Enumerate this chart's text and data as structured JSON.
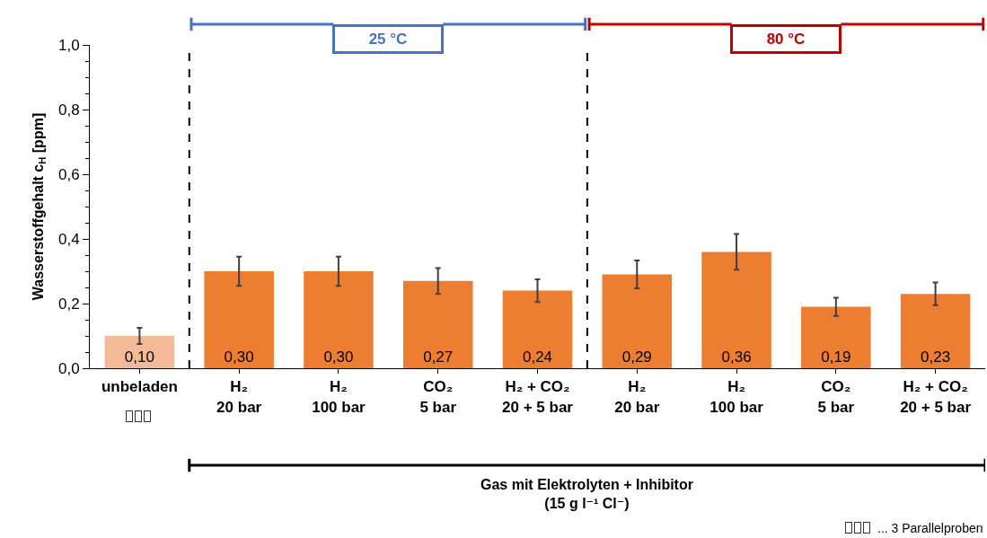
{
  "chart_data": {
    "type": "bar",
    "ylabel": "Wasserstoffgehalt c$_{H}$ [ppm]",
    "xlabel": "Gas mit Elektrolyten + Inhibitor\n(15 g l⁻¹ Cl⁻)",
    "categories": [
      "unbeladen",
      "H₂\n20 bar",
      "H₂\n100 bar",
      "CO₂\n5 bar",
      "H₂ + CO₂\n20 + 5 bar",
      "H₂\n20 bar",
      "H₂\n100 bar",
      "CO₂\n5 bar",
      "H₂ + CO₂\n20 + 5 bar"
    ],
    "values": [
      0.1,
      0.3,
      0.3,
      0.27,
      0.24,
      0.29,
      0.36,
      0.19,
      0.23
    ],
    "errors": [
      0.025,
      0.045,
      0.045,
      0.04,
      0.035,
      0.043,
      0.055,
      0.028,
      0.035
    ],
    "colors": [
      "#f4b996",
      "#ed7d31",
      "#ed7d31",
      "#ed7d31",
      "#ed7d31",
      "#ed7d31",
      "#ed7d31",
      "#ed7d31",
      "#ed7d31"
    ],
    "value_labels": [
      "0,10",
      "0,30",
      "0,30",
      "0,27",
      "0,24",
      "0,29",
      "0,36",
      "0,19",
      "0,23"
    ],
    "ylim": [
      0,
      1
    ],
    "yticks": [
      {
        "value": 0,
        "label": "0,0"
      },
      {
        "value": 0.2,
        "label": "0,2"
      },
      {
        "value": 0.4,
        "label": "0,4"
      },
      {
        "value": 0.6,
        "label": "0,6"
      },
      {
        "value": 0.8,
        "label": "0,8"
      },
      {
        "value": 1,
        "label": "1,0"
      }
    ],
    "grid": false,
    "annotations": [
      "25 °C",
      "80 °C",
      "... 3 Parallelproben"
    ]
  }
}
